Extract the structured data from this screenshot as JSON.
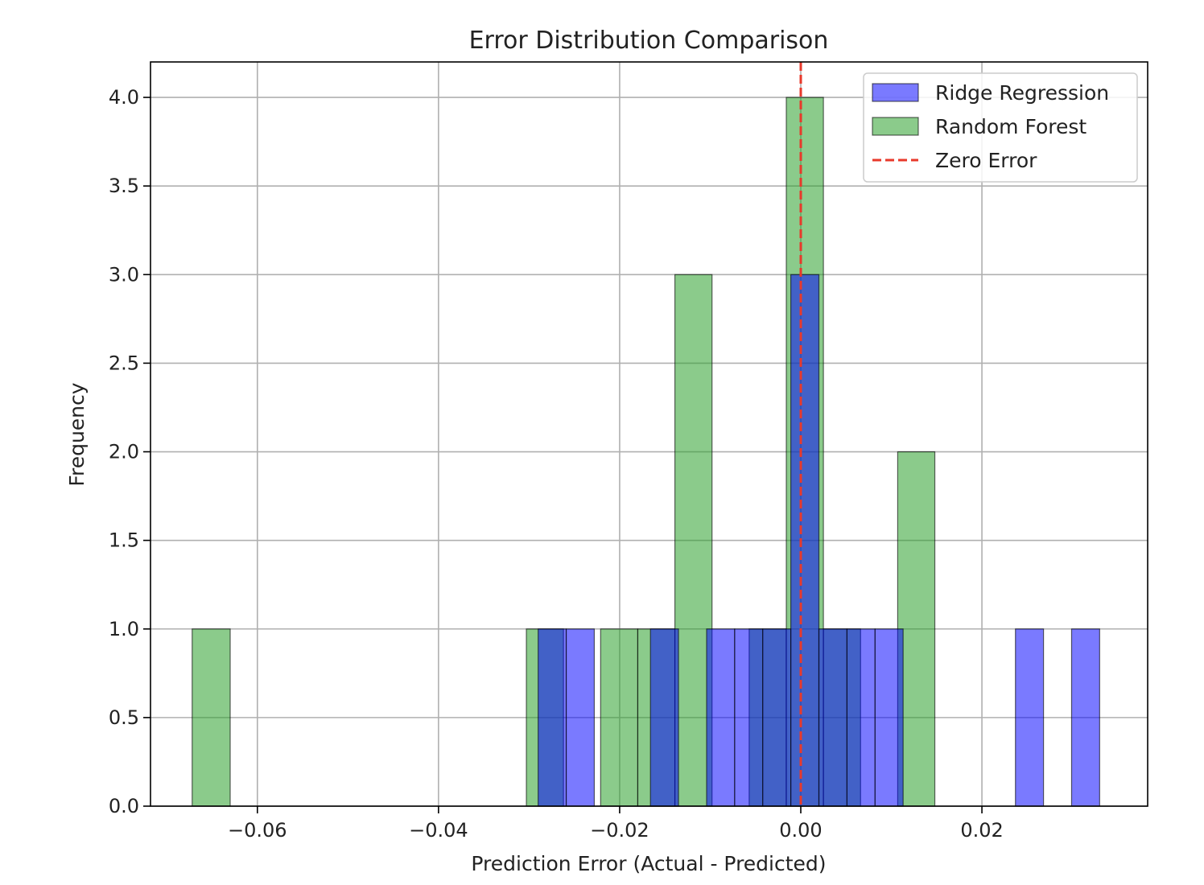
{
  "chart_data": {
    "type": "bar",
    "title": "Error Distribution Comparison",
    "xlabel": "Prediction Error (Actual - Predicted)",
    "ylabel": "Frequency",
    "xlim": [
      -0.0718,
      0.0383
    ],
    "ylim": [
      0,
      4.2
    ],
    "xticks": [
      -0.06,
      -0.04,
      -0.02,
      0.0,
      0.02
    ],
    "xtick_labels": [
      "−0.06",
      "−0.04",
      "−0.02",
      "0.00",
      "0.02"
    ],
    "yticks": [
      0.0,
      0.5,
      1.0,
      1.5,
      2.0,
      2.5,
      3.0,
      3.5,
      4.0
    ],
    "ytick_labels": [
      "0.0",
      "0.5",
      "1.0",
      "1.5",
      "2.0",
      "2.5",
      "3.0",
      "3.5",
      "4.0"
    ],
    "grid": true,
    "legend_position": "top-right",
    "series": [
      {
        "name": "Random Forest",
        "color": "#2ca02c",
        "opacity": 0.55,
        "bins": [
          {
            "x0": -0.0672,
            "x1": -0.063,
            "count": 1
          },
          {
            "x0": -0.0303,
            "x1": -0.0262,
            "count": 1
          },
          {
            "x0": -0.0221,
            "x1": -0.018,
            "count": 1
          },
          {
            "x0": -0.018,
            "x1": -0.0139,
            "count": 1
          },
          {
            "x0": -0.0139,
            "x1": -0.0098,
            "count": 3
          },
          {
            "x0": -0.0057,
            "x1": -0.0016,
            "count": 1
          },
          {
            "x0": -0.0016,
            "x1": 0.0025,
            "count": 4
          },
          {
            "x0": 0.0025,
            "x1": 0.0066,
            "count": 1
          },
          {
            "x0": 0.0107,
            "x1": 0.0148,
            "count": 2
          }
        ]
      },
      {
        "name": "Ridge Regression",
        "color": "#0000ff",
        "opacity": 0.52,
        "bins": [
          {
            "x0": -0.029,
            "x1": -0.0259,
            "count": 1
          },
          {
            "x0": -0.0259,
            "x1": -0.0228,
            "count": 1
          },
          {
            "x0": -0.0166,
            "x1": -0.0135,
            "count": 1
          },
          {
            "x0": -0.0104,
            "x1": -0.0073,
            "count": 1
          },
          {
            "x0": -0.0073,
            "x1": -0.0042,
            "count": 1
          },
          {
            "x0": -0.0042,
            "x1": -0.0011,
            "count": 1
          },
          {
            "x0": -0.0011,
            "x1": 0.002,
            "count": 3
          },
          {
            "x0": 0.002,
            "x1": 0.0051,
            "count": 1
          },
          {
            "x0": 0.0051,
            "x1": 0.0082,
            "count": 1
          },
          {
            "x0": 0.0082,
            "x1": 0.0113,
            "count": 1
          },
          {
            "x0": 0.0237,
            "x1": 0.0268,
            "count": 1
          },
          {
            "x0": 0.0299,
            "x1": 0.033,
            "count": 1
          }
        ]
      }
    ],
    "reference_line": {
      "name": "Zero Error",
      "x": 0.0,
      "color": "#e8392b",
      "style": "dashed"
    },
    "legend": [
      {
        "label": "Ridge Regression",
        "kind": "patch",
        "color": "#0000ff",
        "opacity": 0.52
      },
      {
        "label": "Random Forest",
        "kind": "patch",
        "color": "#2ca02c",
        "opacity": 0.55
      },
      {
        "label": "Zero Error",
        "kind": "line",
        "color": "#e8392b"
      }
    ]
  }
}
